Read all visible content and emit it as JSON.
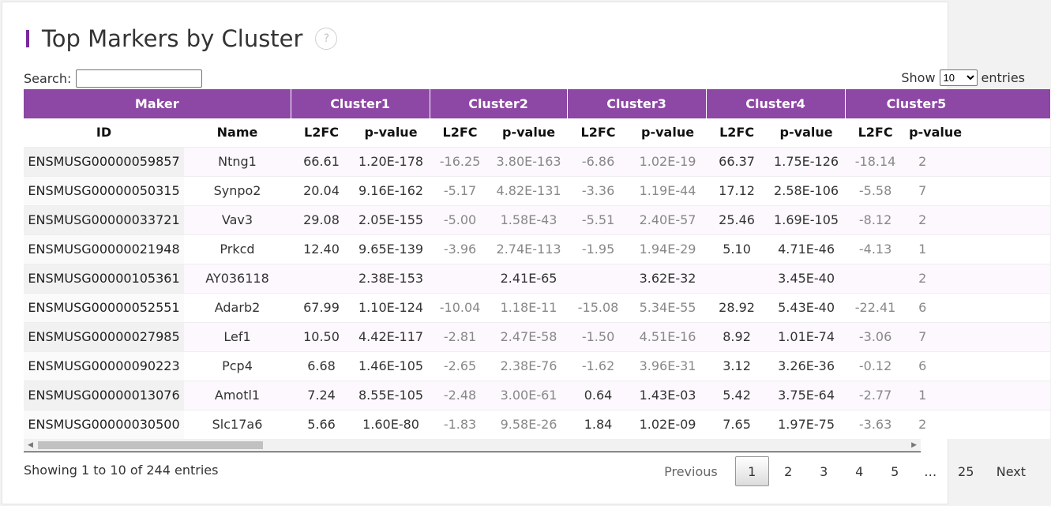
{
  "title": "Top Markers by Cluster",
  "help_glyph": "?",
  "search": {
    "label": "Search:",
    "value": ""
  },
  "length": {
    "prefix": "Show",
    "selected": "10",
    "suffix": "entries"
  },
  "table": {
    "groups": [
      "Maker",
      "Cluster1",
      "Cluster2",
      "Cluster3",
      "Cluster4",
      "Cluster5"
    ],
    "subheaders": [
      "ID",
      "Name",
      "L2FC",
      "p-value",
      "L2FC",
      "p-value",
      "L2FC",
      "p-value",
      "L2FC",
      "p-value",
      "L2FC",
      "p-value"
    ],
    "rows": [
      [
        "ENSMUSG00000059857",
        "Ntng1",
        "66.61",
        "1.20E-178",
        "-16.25",
        "3.80E-163",
        "-6.86",
        "1.02E-19",
        "66.37",
        "1.75E-126",
        "-18.14",
        "2"
      ],
      [
        "ENSMUSG00000050315",
        "Synpo2",
        "20.04",
        "9.16E-162",
        "-5.17",
        "4.82E-131",
        "-3.36",
        "1.19E-44",
        "17.12",
        "2.58E-106",
        "-5.58",
        "7"
      ],
      [
        "ENSMUSG00000033721",
        "Vav3",
        "29.08",
        "2.05E-155",
        "-5.00",
        "1.58E-43",
        "-5.51",
        "2.40E-57",
        "25.46",
        "1.69E-105",
        "-8.12",
        "2"
      ],
      [
        "ENSMUSG00000021948",
        "Prkcd",
        "12.40",
        "9.65E-139",
        "-3.96",
        "2.74E-113",
        "-1.95",
        "1.94E-29",
        "5.10",
        "4.71E-46",
        "-4.13",
        "1"
      ],
      [
        "ENSMUSG00000105361",
        "AY036118",
        "",
        "2.38E-153",
        "",
        "2.41E-65",
        "",
        "3.62E-32",
        "",
        "3.45E-40",
        "",
        "2"
      ],
      [
        "ENSMUSG00000052551",
        "Adarb2",
        "67.99",
        "1.10E-124",
        "-10.04",
        "1.18E-11",
        "-15.08",
        "5.34E-55",
        "28.92",
        "5.43E-40",
        "-22.41",
        "6"
      ],
      [
        "ENSMUSG00000027985",
        "Lef1",
        "10.50",
        "4.42E-117",
        "-2.81",
        "2.47E-58",
        "-1.50",
        "4.51E-16",
        "8.92",
        "1.01E-74",
        "-3.06",
        "7"
      ],
      [
        "ENSMUSG00000090223",
        "Pcp4",
        "6.68",
        "1.46E-105",
        "-2.65",
        "2.38E-76",
        "-1.62",
        "3.96E-31",
        "3.12",
        "3.26E-36",
        "-0.12",
        "6"
      ],
      [
        "ENSMUSG00000013076",
        "Amotl1",
        "7.24",
        "8.55E-105",
        "-2.48",
        "3.00E-61",
        "0.64",
        "1.43E-03",
        "5.42",
        "3.75E-64",
        "-2.77",
        "1"
      ],
      [
        "ENSMUSG00000030500",
        "Slc17a6",
        "5.66",
        "1.60E-80",
        "-1.83",
        "9.58E-26",
        "1.84",
        "1.02E-09",
        "7.65",
        "1.97E-75",
        "-3.63",
        "2"
      ]
    ]
  },
  "info": "Showing 1 to 10 of 244 entries",
  "pagination": {
    "previous": "Previous",
    "pages": [
      "1",
      "2",
      "3",
      "4",
      "5",
      "…",
      "25"
    ],
    "current": "1",
    "next": "Next"
  },
  "colors": {
    "header_purple": "#8d47a4",
    "title_accent": "#7a2a9a"
  }
}
